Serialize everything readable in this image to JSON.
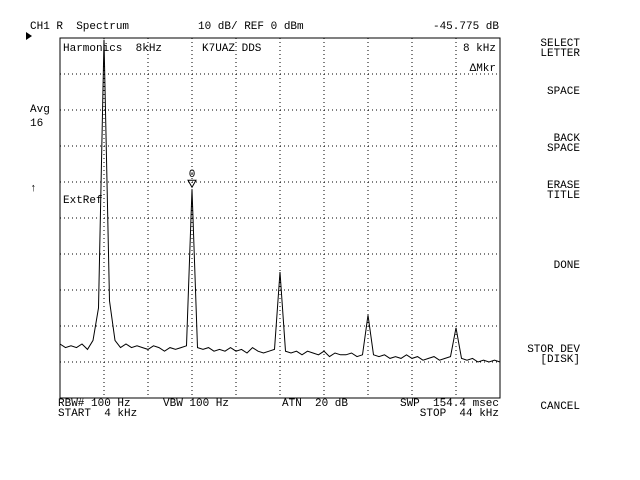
{
  "header": {
    "channel": "CH1 R  Spectrum",
    "scale": "10 dB/ REF 0 dBm",
    "marker_readout": "-45.775 dB"
  },
  "screen": {
    "title": "Harmonics  8kHz",
    "label": "K7UAZ DDS",
    "marker_freq": "8 kHz",
    "marker_mode": "ΔMkr",
    "avg": "Avg",
    "avg_count": "16",
    "ref_arrow": "↑",
    "ext_ref": "ExtRef",
    "marker_label": "0"
  },
  "footer": {
    "rbw": "RBW# 100 Hz",
    "vbw": "VBW 100 Hz",
    "atn": "ATN  20 dB",
    "swp": "SWP  154.4 msec",
    "start": "START  4 kHz",
    "stop": "STOP  44 kHz"
  },
  "softkeys": [
    [
      "SELECT",
      "LETTER"
    ],
    [
      "SPACE"
    ],
    [
      "BACK",
      "SPACE"
    ],
    [
      "ERASE",
      "TITLE"
    ],
    [
      "DONE"
    ],
    [
      "STOR DEV",
      "[DISK]"
    ],
    [
      "CANCEL"
    ]
  ],
  "chart_data": {
    "type": "line",
    "xlim": [
      4,
      44
    ],
    "ylim": [
      -100,
      0
    ],
    "xticks": [
      4,
      8,
      12,
      16,
      20,
      24,
      28,
      32,
      36,
      40,
      44
    ],
    "yticks": [
      -100,
      -90,
      -80,
      -70,
      -60,
      -50,
      -40,
      -30,
      -20,
      -10,
      0
    ],
    "grid": true,
    "color": "#000000",
    "x": [
      4,
      4.5,
      5,
      5.5,
      6,
      6.5,
      7,
      7.5,
      8,
      8.5,
      9,
      9.5,
      10,
      10.5,
      11,
      11.5,
      12,
      12.5,
      13,
      13.5,
      14,
      14.5,
      15,
      15.5,
      16,
      16.5,
      17,
      17.5,
      18,
      18.5,
      19,
      19.5,
      20,
      20.5,
      21,
      21.5,
      22,
      22.5,
      23,
      23.5,
      24,
      24.5,
      25,
      25.5,
      26,
      26.5,
      27,
      27.5,
      28,
      28.5,
      29,
      29.5,
      30,
      30.5,
      31,
      31.5,
      32,
      32.5,
      33,
      33.5,
      34,
      34.5,
      35,
      35.5,
      36,
      36.5,
      37,
      37.5,
      38,
      38.5,
      39,
      39.5,
      40,
      40.5,
      41,
      41.5,
      42,
      42.5,
      43,
      43.5,
      44
    ],
    "values": [
      -85,
      -86,
      -85.5,
      -86,
      -85,
      -86.5,
      -84,
      -75,
      -0.5,
      -73,
      -84,
      -86,
      -85,
      -86,
      -85.5,
      -86,
      -86.5,
      -85.5,
      -86,
      -87,
      -86,
      -86.5,
      -86,
      -85.5,
      -42,
      -86,
      -86.5,
      -86,
      -87,
      -86.5,
      -87,
      -86,
      -87,
      -86.5,
      -87.5,
      -86,
      -87,
      -87.5,
      -87,
      -86.5,
      -65,
      -87,
      -87.5,
      -87,
      -88,
      -87,
      -87.5,
      -88,
      -87,
      -88.5,
      -87.5,
      -88,
      -88,
      -87.5,
      -88.5,
      -88,
      -77,
      -88,
      -88.5,
      -88,
      -89,
      -88.5,
      -89,
      -88,
      -89,
      -88.5,
      -89.5,
      -89,
      -88.5,
      -89.5,
      -89,
      -88.5,
      -80.5,
      -89,
      -89.5,
      -89,
      -90,
      -89.5,
      -90,
      -89.5,
      -90
    ]
  }
}
